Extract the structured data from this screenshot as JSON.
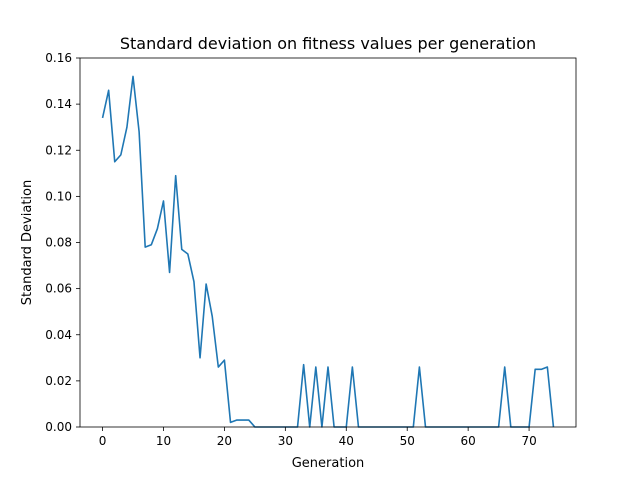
{
  "chart_data": {
    "type": "line",
    "title": "Standard deviation on fitness values per generation",
    "xlabel": "Generation",
    "ylabel": "Standard Deviation",
    "xlim": [
      -3.7,
      77.7
    ],
    "ylim": [
      0,
      0.16
    ],
    "xticks": [
      0,
      10,
      20,
      30,
      40,
      50,
      60,
      70
    ],
    "xtick_labels": [
      "0",
      "10",
      "20",
      "30",
      "40",
      "50",
      "60",
      "70"
    ],
    "yticks": [
      0,
      0.02,
      0.04,
      0.06,
      0.08,
      0.1,
      0.12,
      0.14,
      0.16
    ],
    "ytick_labels": [
      "0.00",
      "0.02",
      "0.04",
      "0.06",
      "0.08",
      "0.10",
      "0.12",
      "0.14",
      "0.16"
    ],
    "grid": false,
    "series": [
      {
        "color": "#1f77b4",
        "x": [
          0,
          1,
          2,
          3,
          4,
          5,
          6,
          7,
          8,
          9,
          10,
          11,
          12,
          13,
          14,
          15,
          16,
          17,
          18,
          19,
          20,
          21,
          22,
          23,
          24,
          25,
          26,
          27,
          28,
          29,
          30,
          31,
          32,
          33,
          34,
          35,
          36,
          37,
          38,
          39,
          40,
          41,
          42,
          43,
          44,
          45,
          46,
          47,
          48,
          49,
          50,
          51,
          52,
          53,
          54,
          55,
          56,
          57,
          58,
          59,
          60,
          61,
          62,
          63,
          64,
          65,
          66,
          67,
          68,
          69,
          70,
          71,
          72,
          73,
          74
        ],
        "y": [
          0.134,
          0.146,
          0.115,
          0.118,
          0.13,
          0.152,
          0.128,
          0.078,
          0.079,
          0.086,
          0.098,
          0.067,
          0.109,
          0.077,
          0.075,
          0.063,
          0.03,
          0.062,
          0.048,
          0.026,
          0.029,
          0.002,
          0.003,
          0.003,
          0.003,
          0.0,
          0.0,
          0.0,
          0.0,
          0.0,
          0.0,
          0.0,
          0.0,
          0.027,
          0.0,
          0.026,
          0.0,
          0.026,
          0.0,
          0.0,
          0.0,
          0.026,
          0.0,
          0.0,
          0.0,
          0.0,
          0.0,
          0.0,
          0.0,
          0.0,
          0.0,
          0.0,
          0.026,
          0.0,
          0.0,
          0.0,
          0.0,
          0.0,
          0.0,
          0.0,
          0.0,
          0.0,
          0.0,
          0.0,
          0.0,
          0.0,
          0.026,
          0.0,
          0.0,
          0.0,
          0.0,
          0.025,
          0.025,
          0.026,
          0.0
        ]
      }
    ]
  }
}
